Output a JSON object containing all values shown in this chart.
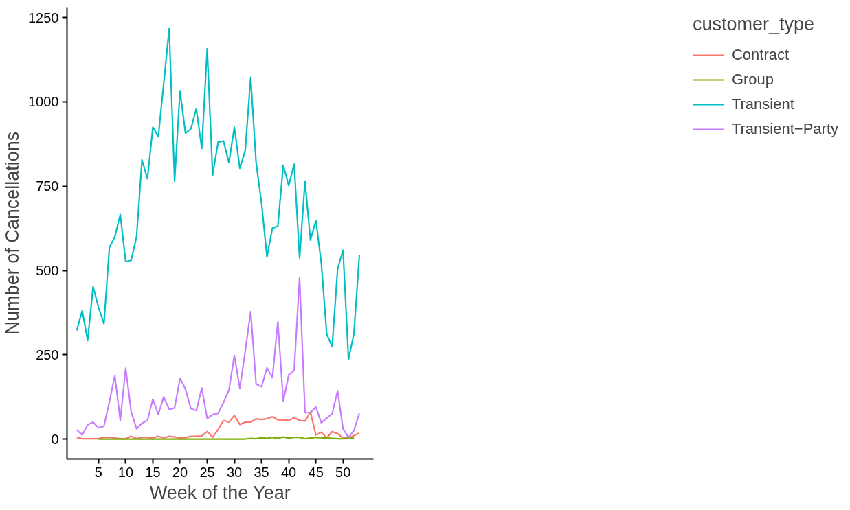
{
  "chart_data": {
    "type": "line",
    "xlabel": "Week of the Year",
    "ylabel": "Number of Cancellations",
    "legend_title": "customer_type",
    "legend": "right",
    "grid": false,
    "xlim": [
      -0.8,
      55.6
    ],
    "ylim": [
      -59,
      1281
    ],
    "xticks": [
      5,
      10,
      15,
      20,
      25,
      30,
      35,
      40,
      45,
      50
    ],
    "yticks": [
      0,
      250,
      500,
      750,
      1000,
      1250
    ],
    "x": [
      1,
      2,
      3,
      4,
      5,
      6,
      7,
      8,
      9,
      10,
      11,
      12,
      13,
      14,
      15,
      16,
      17,
      18,
      19,
      20,
      21,
      22,
      23,
      24,
      25,
      26,
      27,
      28,
      29,
      30,
      31,
      32,
      33,
      34,
      35,
      36,
      37,
      38,
      39,
      40,
      41,
      42,
      43,
      44,
      45,
      46,
      47,
      48,
      49,
      50,
      51,
      52,
      53
    ],
    "series": [
      {
        "name": "Contract",
        "color": "#f8766d",
        "values": [
          5,
          1,
          1,
          1,
          1,
          5,
          5,
          3,
          1,
          1,
          8,
          1,
          5,
          5,
          3,
          8,
          3,
          8,
          6,
          3,
          4,
          8,
          8,
          9,
          22,
          5,
          28,
          55,
          50,
          70,
          43,
          50,
          50,
          60,
          58,
          60,
          66,
          57,
          57,
          55,
          63,
          55,
          53,
          80,
          12,
          20,
          3,
          22,
          16,
          3,
          3,
          10,
          18
        ]
      },
      {
        "name": "Group",
        "color": "#7cae00",
        "x": [
          5,
          6,
          7,
          8,
          9,
          10,
          11,
          12,
          13,
          14,
          15,
          16,
          17,
          18,
          19,
          20,
          21,
          22,
          23,
          24,
          25,
          26,
          27,
          28,
          29,
          30,
          31,
          32,
          33,
          34,
          35,
          36,
          37,
          38,
          39,
          40,
          41,
          42,
          43,
          44,
          45,
          46,
          47,
          48,
          49,
          50,
          51,
          52
        ],
        "values": [
          0,
          0,
          0,
          0,
          0,
          0,
          0,
          0,
          0,
          0,
          0,
          0,
          0,
          0,
          0,
          0,
          0,
          0,
          0,
          0,
          0,
          0,
          0,
          0,
          0,
          0,
          0,
          0,
          2,
          1,
          4,
          2,
          5,
          2,
          6,
          3,
          5,
          5,
          1,
          3,
          5,
          4,
          3,
          2,
          1,
          1,
          2,
          3
        ]
      },
      {
        "name": "Transient",
        "color": "#00bfc4",
        "values": [
          322,
          381,
          292,
          452,
          390,
          342,
          568,
          600,
          666,
          526,
          530,
          600,
          828,
          772,
          925,
          897,
          1055,
          1217,
          765,
          1033,
          907,
          920,
          980,
          862,
          1158,
          783,
          880,
          884,
          820,
          925,
          803,
          856,
          1073,
          820,
          700,
          540,
          625,
          632,
          812,
          752,
          815,
          537,
          765,
          590,
          648,
          522,
          310,
          275,
          505,
          560,
          236,
          312,
          545
        ]
      },
      {
        "name": "Transient−Party",
        "color": "#c77cff",
        "values": [
          27,
          12,
          42,
          50,
          33,
          38,
          110,
          188,
          56,
          210,
          82,
          30,
          47,
          55,
          118,
          73,
          125,
          88,
          92,
          180,
          148,
          90,
          84,
          151,
          61,
          72,
          76,
          108,
          145,
          248,
          150,
          260,
          378,
          163,
          155,
          211,
          182,
          348,
          112,
          190,
          203,
          478,
          78,
          78,
          95,
          48,
          62,
          75,
          143,
          30,
          5,
          25,
          76
        ]
      }
    ]
  }
}
